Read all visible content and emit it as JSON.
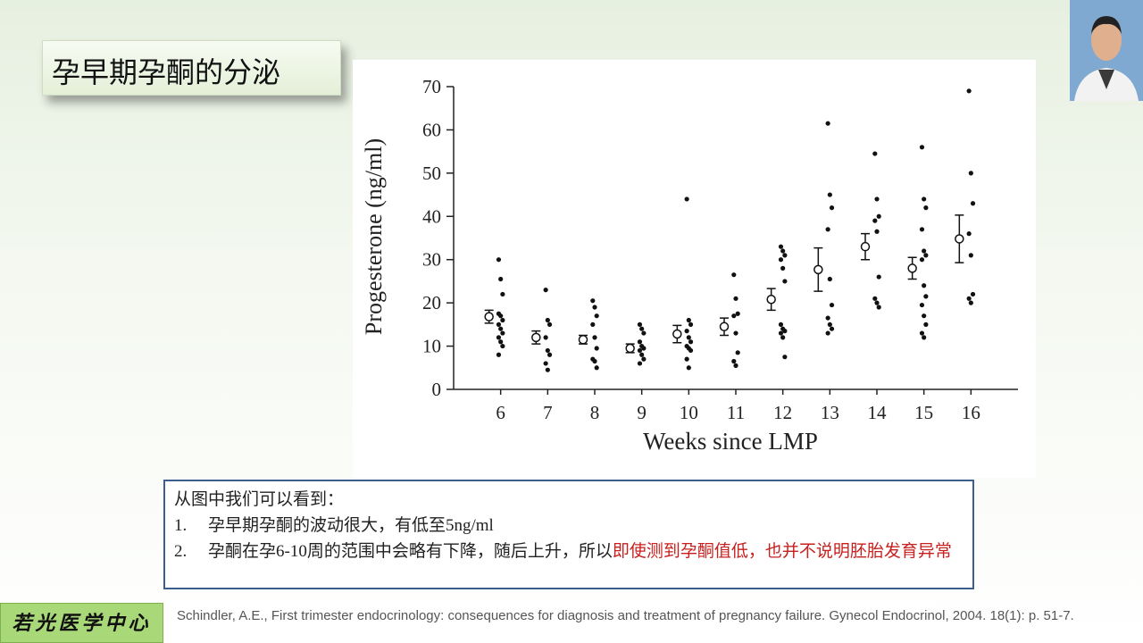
{
  "title": "孕早期孕酮的分泌",
  "chart_data": {
    "type": "scatter",
    "x_label": "Weeks since LMP",
    "y_label": "Progesterone (ng/ml)",
    "xlim": [
      5,
      17
    ],
    "ylim": [
      0,
      70
    ],
    "xticks": [
      6,
      7,
      8,
      9,
      10,
      11,
      12,
      13,
      14,
      15,
      16
    ],
    "yticks": [
      0,
      10,
      20,
      30,
      40,
      50,
      60,
      70
    ],
    "color": "#111111",
    "dots": [
      {
        "x": 6,
        "values": [
          30,
          25.5,
          22,
          17.5,
          17,
          16,
          15,
          14,
          13,
          12,
          11,
          10,
          8
        ]
      },
      {
        "x": 7,
        "values": [
          23,
          16,
          15,
          12,
          9,
          8,
          6,
          4.5
        ]
      },
      {
        "x": 8,
        "values": [
          20.5,
          19,
          17,
          15,
          12,
          9.5,
          7,
          6.5,
          5
        ]
      },
      {
        "x": 9,
        "values": [
          15,
          14,
          13,
          11,
          10,
          9.5,
          9,
          8,
          7,
          6
        ]
      },
      {
        "x": 10,
        "values": [
          44,
          16,
          15,
          13.5,
          12,
          11,
          10,
          9.5,
          9,
          7,
          5
        ]
      },
      {
        "x": 11,
        "values": [
          26.5,
          21,
          17.5,
          17,
          13,
          8.5,
          6.5,
          5.5
        ]
      },
      {
        "x": 12,
        "values": [
          33,
          32,
          31,
          30,
          28,
          25,
          15,
          14,
          13.5,
          13,
          12,
          7.5
        ]
      },
      {
        "x": 13,
        "values": [
          61.5,
          45,
          42,
          37,
          25.5,
          19.5,
          16.5,
          15,
          14,
          13
        ]
      },
      {
        "x": 14,
        "values": [
          54.5,
          44,
          40,
          39,
          36.5,
          26,
          21,
          20,
          19
        ]
      },
      {
        "x": 15,
        "values": [
          56,
          44,
          42,
          37,
          32,
          31,
          30,
          24,
          21.5,
          19.5,
          17,
          15,
          13,
          12
        ]
      },
      {
        "x": 16,
        "values": [
          69,
          50,
          43,
          36,
          31,
          22,
          21,
          20
        ]
      }
    ],
    "means": {
      "x": [
        6,
        7,
        8,
        9,
        10,
        11,
        12,
        13,
        14,
        15,
        16
      ],
      "values": [
        16.8,
        12,
        11.5,
        9.5,
        12.8,
        14.5,
        20.8,
        27.7,
        33,
        28,
        34.8
      ],
      "errors": [
        1.5,
        1.5,
        1,
        1,
        2,
        2,
        2.5,
        5,
        3,
        2.5,
        5.5
      ]
    }
  },
  "notes": {
    "heading": "从图中我们可以看到：",
    "items": [
      {
        "number": "1.",
        "text": "孕早期孕酮的波动很大，有低至5ng/ml"
      },
      {
        "number": "2.",
        "text": "孕酮在孕6-10周的范围中会略有下降，随后上升，所以",
        "highlight": "即使测到孕酮值低，也并不说明胚胎发育异常"
      }
    ]
  },
  "logo": "若光医学中心",
  "reference": "Schindler, A.E., First trimester endocrinology: consequences for diagnosis and treatment of pregnancy failure. Gynecol Endocrinol, 2004. 18(1): p. 51-7."
}
